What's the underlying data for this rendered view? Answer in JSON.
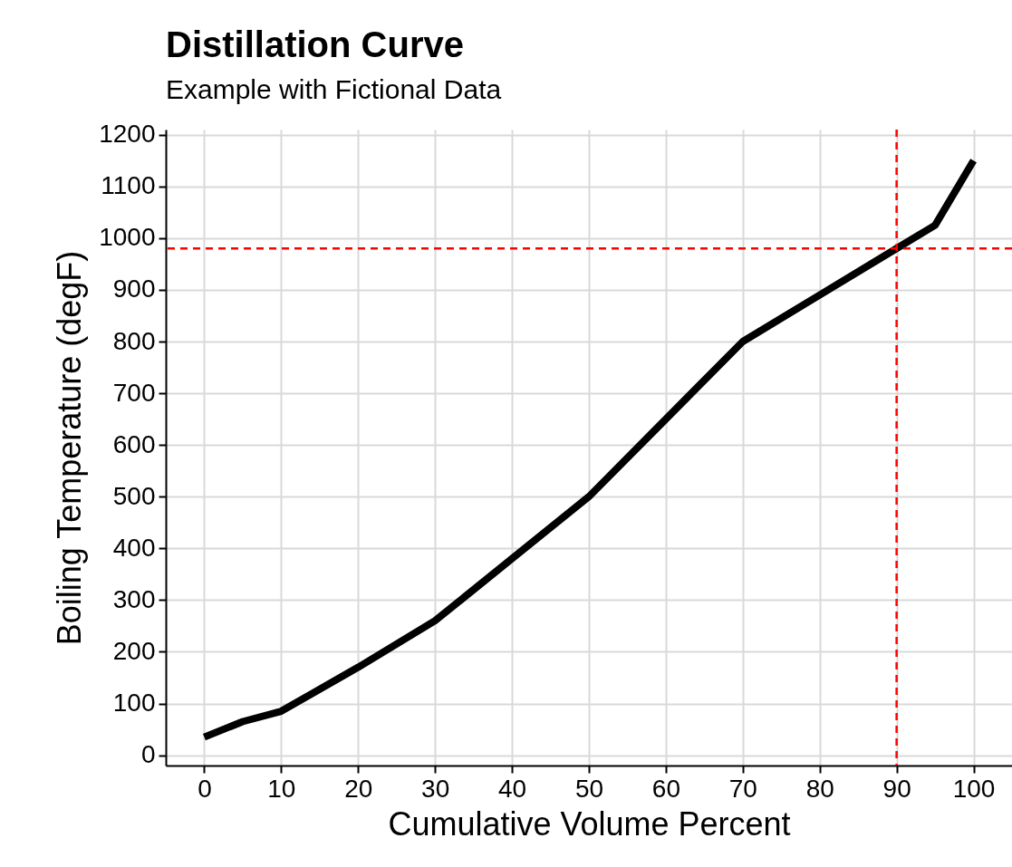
{
  "chart_data": {
    "type": "line",
    "title": "Distillation Curve",
    "subtitle": "Example with Fictional Data",
    "xlabel": "Cumulative Volume Percent",
    "ylabel": "Boiling Temperature (degF)",
    "x": [
      0,
      5,
      10,
      20,
      30,
      40,
      50,
      60,
      70,
      80,
      90,
      95,
      100
    ],
    "series": [
      {
        "color": "#000000",
        "values": [
          35,
          65,
          85,
          170,
          260,
          380,
          500,
          650,
          800,
          890,
          980,
          1025,
          1150
        ]
      }
    ],
    "xlim": [
      -5,
      105
    ],
    "xticks": [
      0,
      10,
      20,
      30,
      40,
      50,
      60,
      70,
      80,
      90,
      100
    ],
    "ylim": [
      -20,
      1210
    ],
    "yticks": [
      0,
      100,
      200,
      300,
      400,
      500,
      600,
      700,
      800,
      900,
      1000,
      1100,
      1200
    ],
    "grid": true,
    "line_style": "solid",
    "ref_lines": [
      {
        "axis": "y",
        "value": 980,
        "color": "#ff0000",
        "line_style": "dashed"
      },
      {
        "axis": "x",
        "value": 90,
        "color": "#ff0000",
        "line_style": "dashed"
      }
    ]
  }
}
